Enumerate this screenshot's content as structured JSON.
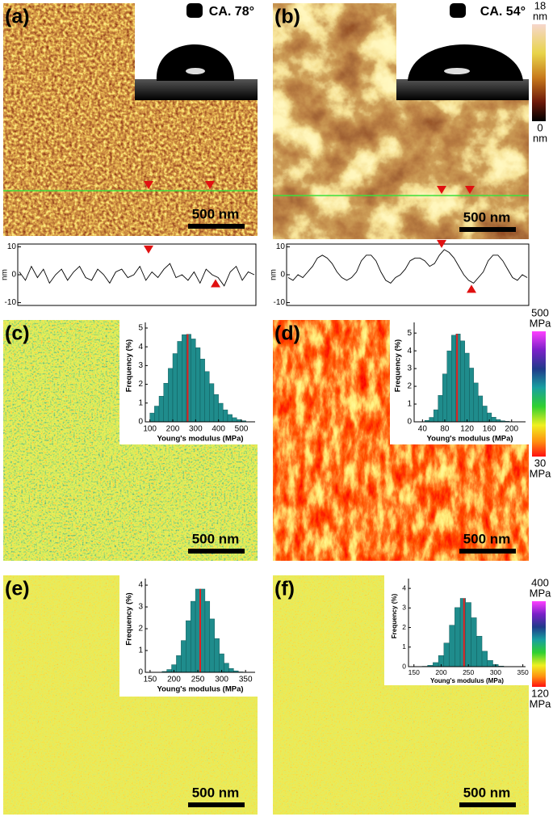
{
  "panels": [
    {
      "label": "(a)",
      "scale_bar": "500 nm",
      "contact_angle": "CA. 78°"
    },
    {
      "label": "(b)",
      "scale_bar": "500 nm",
      "contact_angle": "CA. 54°"
    },
    {
      "label": "(c)",
      "scale_bar": "500 nm"
    },
    {
      "label": "(d)",
      "scale_bar": "500 nm"
    },
    {
      "label": "(e)",
      "scale_bar": "500 nm"
    },
    {
      "label": "(f)",
      "scale_bar": "500 nm"
    }
  ],
  "colorbars": [
    {
      "max": 18,
      "max_unit": "nm",
      "min": 0,
      "min_unit": "nm"
    },
    {
      "max": 500,
      "max_unit": "MPa",
      "min": 30,
      "min_unit": "MPa"
    },
    {
      "max": 400,
      "max_unit": "MPa",
      "min": 120,
      "min_unit": "MPa"
    }
  ],
  "chart_data": [
    {
      "type": "line",
      "ylabel": "nm",
      "color": "#000000",
      "ylim": [
        -11,
        11
      ],
      "yticks": [
        -10,
        0,
        10
      ],
      "values": [
        1,
        -2,
        3,
        -1,
        2,
        -3,
        0,
        2,
        -2,
        1,
        3,
        -1,
        -2,
        2,
        0,
        -3,
        1,
        2,
        -1,
        0,
        3,
        -2,
        1,
        -1,
        2,
        4,
        -1,
        0,
        -2,
        1,
        -3,
        2,
        0,
        -1,
        -4,
        1,
        3,
        -2,
        1,
        0
      ]
    },
    {
      "type": "line",
      "ylabel": "nm",
      "color": "#000000",
      "ylim": [
        -11,
        11
      ],
      "yticks": [
        -10,
        0,
        10
      ],
      "values": [
        -1,
        -2,
        0,
        -1,
        1,
        3,
        6,
        7,
        6,
        4,
        1,
        -1,
        -2,
        -1,
        1,
        5,
        7,
        7,
        5,
        1,
        -2,
        -3,
        -1,
        0,
        2,
        5,
        6,
        6,
        5,
        3,
        4,
        7,
        9,
        8,
        6,
        3,
        0,
        -2,
        -3,
        -1,
        1,
        5,
        7,
        7,
        5,
        2,
        -1,
        -2,
        0,
        -1
      ]
    },
    {
      "type": "histogram",
      "xlabel": "Young's modulus (MPa)",
      "ylabel": "Frequency (%)",
      "color": "#1f8c8c",
      "median": 265,
      "median_color": "#e02020",
      "xlim": [
        80,
        560
      ],
      "xticks": [
        100,
        200,
        300,
        400,
        500
      ],
      "ylim": [
        0,
        5.3
      ],
      "yticks": [
        0,
        1,
        2,
        3,
        4,
        5
      ],
      "bins": [
        100,
        120,
        140,
        160,
        180,
        200,
        220,
        240,
        260,
        280,
        300,
        320,
        340,
        360,
        380,
        400,
        420,
        440,
        460,
        480,
        500,
        520
      ],
      "values": [
        0.47,
        0.84,
        1.37,
        2.06,
        2.85,
        3.64,
        4.29,
        4.65,
        4.67,
        4.42,
        3.95,
        3.35,
        2.68,
        2.04,
        1.46,
        0.99,
        0.64,
        0.39,
        0.22,
        0.12,
        0.06
      ]
    },
    {
      "type": "histogram",
      "xlabel": "Young's modulus (MPa)",
      "ylabel": "Frequency (%)",
      "color": "#1f8c8c",
      "median": 102,
      "median_color": "#e02020",
      "xlim": [
        25,
        225
      ],
      "xticks": [
        40,
        80,
        120,
        160,
        200
      ],
      "ylim": [
        0,
        5.6
      ],
      "yticks": [
        0,
        1,
        2,
        3,
        4,
        5
      ],
      "bins": [
        44,
        52,
        60,
        68,
        76,
        84,
        92,
        100,
        108,
        116,
        124,
        132,
        140,
        148,
        156,
        164,
        172,
        180,
        188,
        196,
        204,
        212
      ],
      "values": [
        0.08,
        0.25,
        0.68,
        1.49,
        2.7,
        4.0,
        4.88,
        4.95,
        4.56,
        3.87,
        3.03,
        2.19,
        1.46,
        0.89,
        0.5,
        0.26,
        0.13,
        0.06,
        0.03,
        0.01,
        0.01
      ]
    },
    {
      "type": "histogram",
      "xlabel": "Young's modulus (MPa)",
      "ylabel": "Frequency (%)",
      "color": "#1f8c8c",
      "median": 255,
      "median_color": "#e02020",
      "xlim": [
        140,
        370
      ],
      "xticks": [
        150,
        200,
        250,
        300,
        350
      ],
      "ylim": [
        0,
        4.3
      ],
      "yticks": [
        0,
        1,
        2,
        3,
        4
      ],
      "bins": [
        175,
        185,
        195,
        205,
        215,
        225,
        235,
        245,
        255,
        265,
        275,
        285,
        295,
        305,
        315,
        325,
        335,
        345
      ],
      "values": [
        0.04,
        0.13,
        0.35,
        0.77,
        1.46,
        2.37,
        3.26,
        3.82,
        3.82,
        3.26,
        2.45,
        1.55,
        0.85,
        0.42,
        0.18,
        0.07,
        0.02
      ]
    },
    {
      "type": "histogram",
      "xlabel": "Young's modulus (MPa)",
      "ylabel": "Frequency (%)",
      "color": "#1f8c8c",
      "median": 242,
      "median_color": "#e02020",
      "xlim": [
        140,
        355
      ],
      "xticks": [
        150,
        200,
        250,
        300,
        350
      ],
      "ylim": [
        0,
        4.5
      ],
      "yticks": [
        0,
        1,
        2,
        3,
        4
      ],
      "bins": [
        165,
        175,
        185,
        195,
        205,
        215,
        225,
        235,
        245,
        255,
        265,
        275,
        285,
        295,
        305,
        315,
        325,
        335
      ],
      "values": [
        0.02,
        0.07,
        0.21,
        0.57,
        1.21,
        2.12,
        3.02,
        3.49,
        3.28,
        2.5,
        1.56,
        0.79,
        0.32,
        0.11,
        0.03,
        0.01,
        0.01
      ]
    }
  ]
}
